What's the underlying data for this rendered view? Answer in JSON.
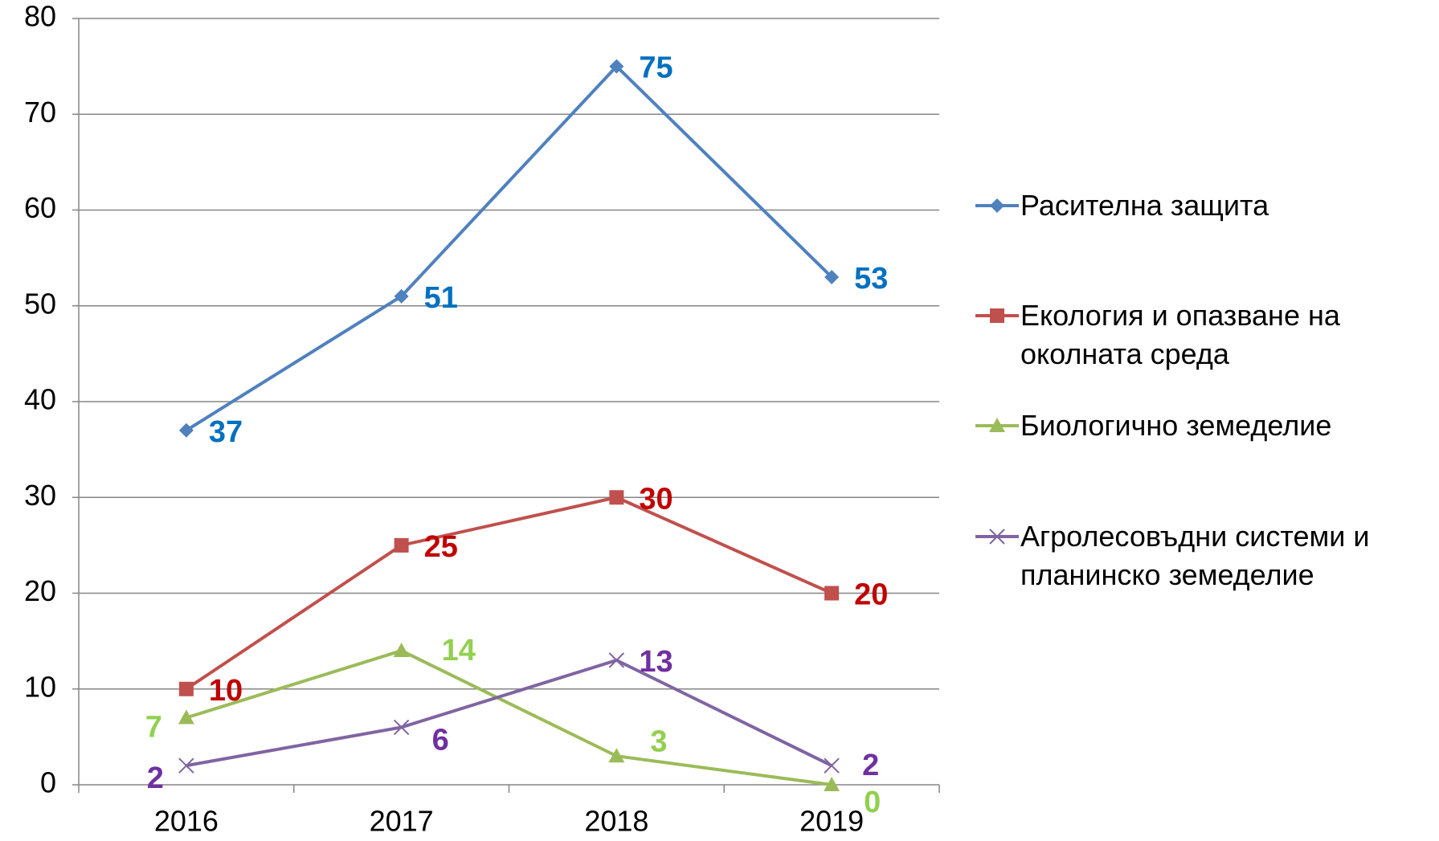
{
  "chart_data": {
    "type": "line",
    "categories": [
      "2016",
      "2017",
      "2018",
      "2019"
    ],
    "series": [
      {
        "name": "Расителна защита",
        "color": "#4f81bd",
        "label_color": "#0070c0",
        "marker": "diamond",
        "values": [
          37,
          51,
          75,
          53
        ]
      },
      {
        "name": "Екология и опазване на околната среда",
        "color": "#c0504d",
        "label_color": "#c00000",
        "marker": "square",
        "values": [
          10,
          25,
          30,
          20
        ]
      },
      {
        "name": "Биологично земеделие",
        "color": "#9bbb59",
        "label_color": "#92d050",
        "marker": "triangle",
        "values": [
          7,
          14,
          3,
          0
        ]
      },
      {
        "name": "Агролесовъдни системи и планинско земеделие",
        "color": "#8064a2",
        "label_color": "#7030a0",
        "marker": "x",
        "values": [
          2,
          6,
          13,
          2
        ]
      }
    ],
    "ylim": [
      0,
      80
    ],
    "yticks": [
      0,
      10,
      20,
      30,
      40,
      50,
      60,
      70,
      80
    ],
    "grid": true,
    "legend": "right"
  }
}
